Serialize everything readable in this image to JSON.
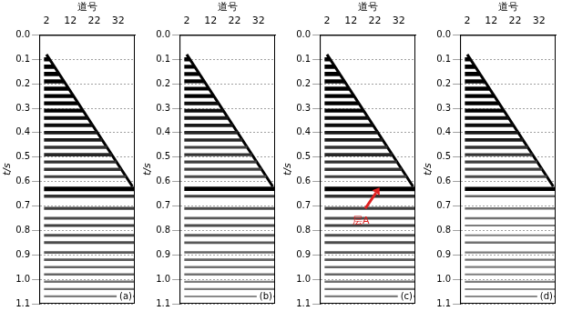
{
  "chart_data": [
    {
      "type": "line",
      "x_label": "道号",
      "y_label": "t/s",
      "panel_label": "(a)",
      "xlim": [
        -1,
        39
      ],
      "xticks": [
        2,
        12,
        22,
        32
      ],
      "ylim": [
        0,
        1.1
      ],
      "yticks": [
        {
          "value": 0,
          "label": "0.0"
        },
        0.1,
        0.2,
        0.3,
        0.4,
        0.5,
        0.6,
        0.7,
        0.8,
        0.9,
        {
          "value": 1,
          "label": "1.0"
        },
        1.1
      ],
      "grid": true,
      "first_break": {
        "x": [
          2,
          38
        ],
        "t": [
          0.08,
          0.62
        ]
      },
      "events": {
        "x_start": 1,
        "t": [
          0.1,
          0.13,
          0.16,
          0.19,
          0.22,
          0.25,
          0.28,
          0.31,
          0.34,
          0.37,
          0.4,
          0.43,
          0.46,
          0.49,
          0.52,
          0.55,
          0.58,
          0.63,
          0.66,
          0.71,
          0.75,
          0.78,
          0.82,
          0.85,
          0.89,
          0.92,
          0.95,
          0.98,
          1.01,
          1.04,
          1.07
        ],
        "x_end": [
          3.3,
          5.3,
          7.3,
          9.3,
          11.3,
          13.3,
          15.3,
          17.3,
          19.3,
          21.3,
          23.3,
          25.3,
          27.3,
          29.3,
          31.3,
          33.3,
          35.3,
          39,
          39,
          39,
          39,
          39,
          39,
          39,
          39,
          39,
          39,
          39,
          39,
          39,
          39
        ],
        "amplitude": [
          0.9,
          0.9,
          0.9,
          0.85,
          0.85,
          0.85,
          0.8,
          0.8,
          0.75,
          0.75,
          0.7,
          0.7,
          0.6,
          0.65,
          0.6,
          0.6,
          0.55,
          1.0,
          0.6,
          0.55,
          0.5,
          0.55,
          0.5,
          0.5,
          0.45,
          0.45,
          0.4,
          0.4,
          0.35,
          0.35,
          0.3
        ]
      },
      "annotations": []
    },
    {
      "type": "line",
      "x_label": "道号",
      "y_label": "t/s",
      "panel_label": "(b)",
      "xlim": [
        -1,
        39
      ],
      "xticks": [
        2,
        12,
        22,
        32
      ],
      "ylim": [
        0,
        1.1
      ],
      "yticks": [
        {
          "value": 0,
          "label": "0.0"
        },
        0.1,
        0.2,
        0.3,
        0.4,
        0.5,
        0.6,
        0.7,
        0.8,
        0.9,
        {
          "value": 1,
          "label": "1.0"
        },
        1.1
      ],
      "grid": true,
      "first_break": {
        "x": [
          2,
          38
        ],
        "t": [
          0.08,
          0.62
        ]
      },
      "events": {
        "x_start": 1,
        "t": [
          0.1,
          0.13,
          0.16,
          0.19,
          0.22,
          0.25,
          0.28,
          0.31,
          0.34,
          0.37,
          0.4,
          0.43,
          0.46,
          0.49,
          0.52,
          0.55,
          0.58,
          0.63,
          0.66,
          0.71,
          0.75,
          0.78,
          0.82,
          0.85,
          0.89,
          0.92,
          0.95,
          0.98,
          1.01,
          1.04,
          1.07
        ],
        "x_end": [
          3.3,
          5.3,
          7.3,
          9.3,
          11.3,
          13.3,
          15.3,
          17.3,
          19.3,
          21.3,
          23.3,
          25.3,
          27.3,
          29.3,
          31.3,
          33.3,
          35.3,
          39,
          39,
          39,
          39,
          39,
          39,
          39,
          39,
          39,
          39,
          39,
          39,
          39,
          39
        ],
        "amplitude": [
          0.85,
          0.85,
          0.85,
          0.8,
          0.8,
          0.8,
          0.75,
          0.75,
          0.7,
          0.7,
          0.65,
          0.65,
          0.55,
          0.6,
          0.55,
          0.55,
          0.5,
          0.95,
          0.55,
          0.5,
          0.45,
          0.5,
          0.45,
          0.45,
          0.4,
          0.4,
          0.35,
          0.35,
          0.3,
          0.3,
          0.25
        ]
      },
      "annotations": []
    },
    {
      "type": "line",
      "x_label": "道号",
      "y_label": "t/s",
      "panel_label": "(c)",
      "xlim": [
        -1,
        39
      ],
      "xticks": [
        2,
        12,
        22,
        32
      ],
      "ylim": [
        0,
        1.1
      ],
      "yticks": [
        {
          "value": 0,
          "label": "0.0"
        },
        0.1,
        0.2,
        0.3,
        0.4,
        0.5,
        0.6,
        0.7,
        0.8,
        0.9,
        {
          "value": 1,
          "label": "1.0"
        },
        1.1
      ],
      "grid": true,
      "first_break": {
        "x": [
          2,
          38
        ],
        "t": [
          0.08,
          0.62
        ]
      },
      "events": {
        "x_start": 1,
        "t": [
          0.1,
          0.13,
          0.16,
          0.19,
          0.22,
          0.25,
          0.28,
          0.31,
          0.34,
          0.37,
          0.4,
          0.43,
          0.46,
          0.49,
          0.52,
          0.55,
          0.58,
          0.63,
          0.66,
          0.71,
          0.75,
          0.78,
          0.82,
          0.85,
          0.89,
          0.92,
          0.95,
          0.98,
          1.01,
          1.04,
          1.07
        ],
        "x_end": [
          3.3,
          5.3,
          7.3,
          9.3,
          11.3,
          13.3,
          15.3,
          17.3,
          19.3,
          21.3,
          23.3,
          25.3,
          27.3,
          29.3,
          31.3,
          33.3,
          35.3,
          39,
          39,
          39,
          39,
          39,
          39,
          39,
          39,
          39,
          39,
          39,
          39,
          39,
          39
        ],
        "amplitude": [
          0.9,
          0.9,
          0.9,
          0.85,
          0.85,
          0.85,
          0.8,
          0.8,
          0.75,
          0.75,
          0.7,
          0.7,
          0.6,
          0.65,
          0.6,
          0.6,
          0.55,
          1.0,
          0.6,
          0.55,
          0.5,
          0.55,
          0.5,
          0.5,
          0.45,
          0.45,
          0.4,
          0.4,
          0.35,
          0.35,
          0.3
        ]
      },
      "annotations": [
        {
          "text": "层A",
          "x": 15,
          "t": 0.74,
          "arrow_to": [
            24,
            0.625
          ],
          "color": "#e02020"
        }
      ]
    },
    {
      "type": "line",
      "x_label": "道号",
      "y_label": "t/s",
      "panel_label": "(d)",
      "xlim": [
        -1,
        39
      ],
      "xticks": [
        2,
        12,
        22,
        32
      ],
      "ylim": [
        0,
        1.1
      ],
      "yticks": [
        {
          "value": 0,
          "label": "0.0"
        },
        0.1,
        0.2,
        0.3,
        0.4,
        0.5,
        0.6,
        0.7,
        0.8,
        0.9,
        {
          "value": 1,
          "label": "1.0"
        },
        1.1
      ],
      "grid": true,
      "first_break": {
        "x": [
          2,
          38
        ],
        "t": [
          0.08,
          0.62
        ]
      },
      "events": {
        "x_start": 1,
        "t": [
          0.1,
          0.13,
          0.16,
          0.19,
          0.22,
          0.25,
          0.28,
          0.31,
          0.34,
          0.37,
          0.4,
          0.43,
          0.46,
          0.49,
          0.52,
          0.55,
          0.58,
          0.63,
          0.66,
          0.71,
          0.75,
          0.78,
          0.82,
          0.85,
          0.89,
          0.92,
          0.95,
          0.98,
          1.01,
          1.04,
          1.07
        ],
        "x_end": [
          3.3,
          5.3,
          7.3,
          9.3,
          11.3,
          13.3,
          15.3,
          17.3,
          19.3,
          21.3,
          23.3,
          25.3,
          27.3,
          29.3,
          31.3,
          33.3,
          35.3,
          39,
          39,
          39,
          39,
          39,
          39,
          39,
          39,
          39,
          39,
          39,
          39,
          39,
          39
        ],
        "amplitude": [
          0.9,
          0.9,
          0.9,
          0.85,
          0.85,
          0.85,
          0.8,
          0.8,
          0.75,
          0.75,
          0.7,
          0.7,
          0.6,
          0.6,
          0.55,
          0.55,
          0.5,
          0.9,
          0.4,
          0.35,
          0.35,
          0.3,
          0.3,
          0.35,
          0.3,
          0.35,
          0.3,
          0.3,
          0.3,
          0.25,
          0.25
        ]
      },
      "annotations": []
    }
  ]
}
